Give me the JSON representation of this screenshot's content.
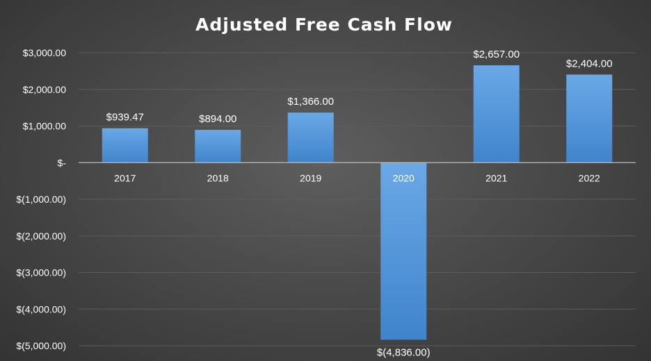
{
  "chart_data": {
    "type": "bar",
    "title": "Adjusted Free Cash Flow",
    "xlabel": "",
    "ylabel": "",
    "categories": [
      "2017",
      "2018",
      "2019",
      "2020",
      "2021",
      "2022"
    ],
    "values": [
      939.47,
      894.0,
      1366.0,
      -4836.0,
      2657.0,
      2404.0
    ],
    "data_labels": [
      "$939.47",
      "$894.00",
      "$1,366.00",
      "$(4,836.00)",
      "$2,657.00",
      "$2,404.00"
    ],
    "ylim": [
      -5000,
      3000
    ],
    "yticks": [
      3000,
      2000,
      1000,
      0,
      -1000,
      -2000,
      -3000,
      -4000,
      -5000
    ],
    "ytick_labels": [
      "$3,000.00",
      "$2,000.00",
      "$1,000.00",
      "$-",
      "$(1,000.00)",
      "$(2,000.00)",
      "$(3,000.00)",
      "$(4,000.00)",
      "$(5,000.00)"
    ],
    "grid": true,
    "legend": "none",
    "colors": {
      "bar_top": "#6aa8e6",
      "bar_bottom": "#3f84cc",
      "background": "#4a4a4a",
      "text": "#ffffff"
    }
  }
}
